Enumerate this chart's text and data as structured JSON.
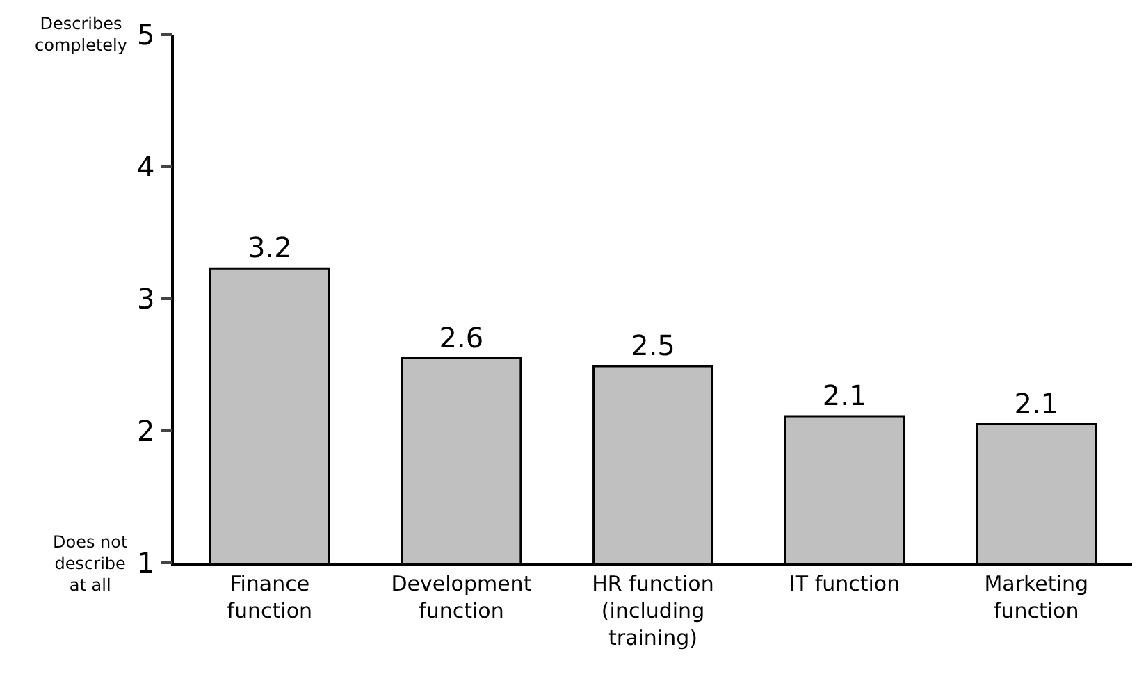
{
  "chart_data": {
    "type": "bar",
    "categories": [
      "Finance\nfunction",
      "Development\nfunction",
      "HR function\n(including\ntraining)",
      "IT function",
      "Marketing\nfunction"
    ],
    "values": [
      3.23,
      2.55,
      2.49,
      2.11,
      2.05
    ],
    "value_labels": [
      "3.2",
      "2.6",
      "2.5",
      "2.1",
      "2.1"
    ],
    "color": "#c0c0c0",
    "ylim": [
      1,
      5
    ],
    "yticks": [
      1,
      2,
      3,
      4,
      5
    ],
    "annotations": [
      "Describes\ncompletely",
      "Does not\ndescribe\nat all"
    ]
  }
}
